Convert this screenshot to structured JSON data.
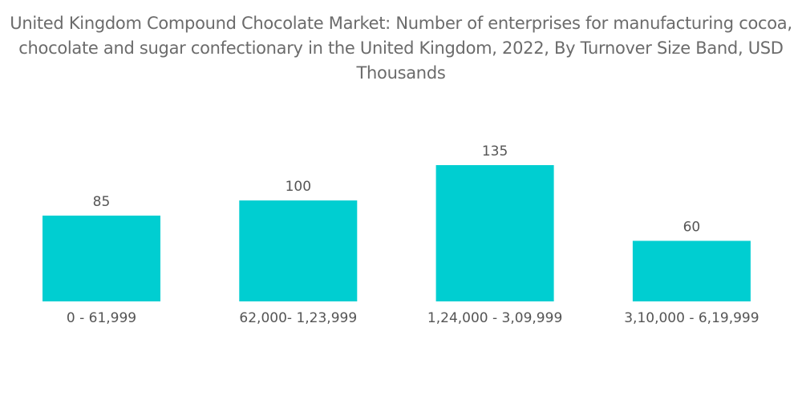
{
  "chart_data": {
    "type": "bar",
    "title": "United Kingdom Compound Chocolate Market: Number of enterprises for manufacturing cocoa, chocolate and sugar confectionary in the United Kingdom, 2022, By Turnover Size Band, USD Thousands",
    "categories": [
      "0 - 61,999",
      "62,000- 1,23,999",
      "1,24,000 - 3,09,999",
      "3,10,000 - 6,19,999"
    ],
    "values": [
      85,
      100,
      135,
      60
    ],
    "data_labels": [
      "85",
      "100",
      "135",
      "60"
    ],
    "xlabel": "",
    "ylabel": "",
    "ylim": [
      0,
      135
    ],
    "grid": false,
    "legend": "none",
    "bar_color": "#00CED1"
  }
}
